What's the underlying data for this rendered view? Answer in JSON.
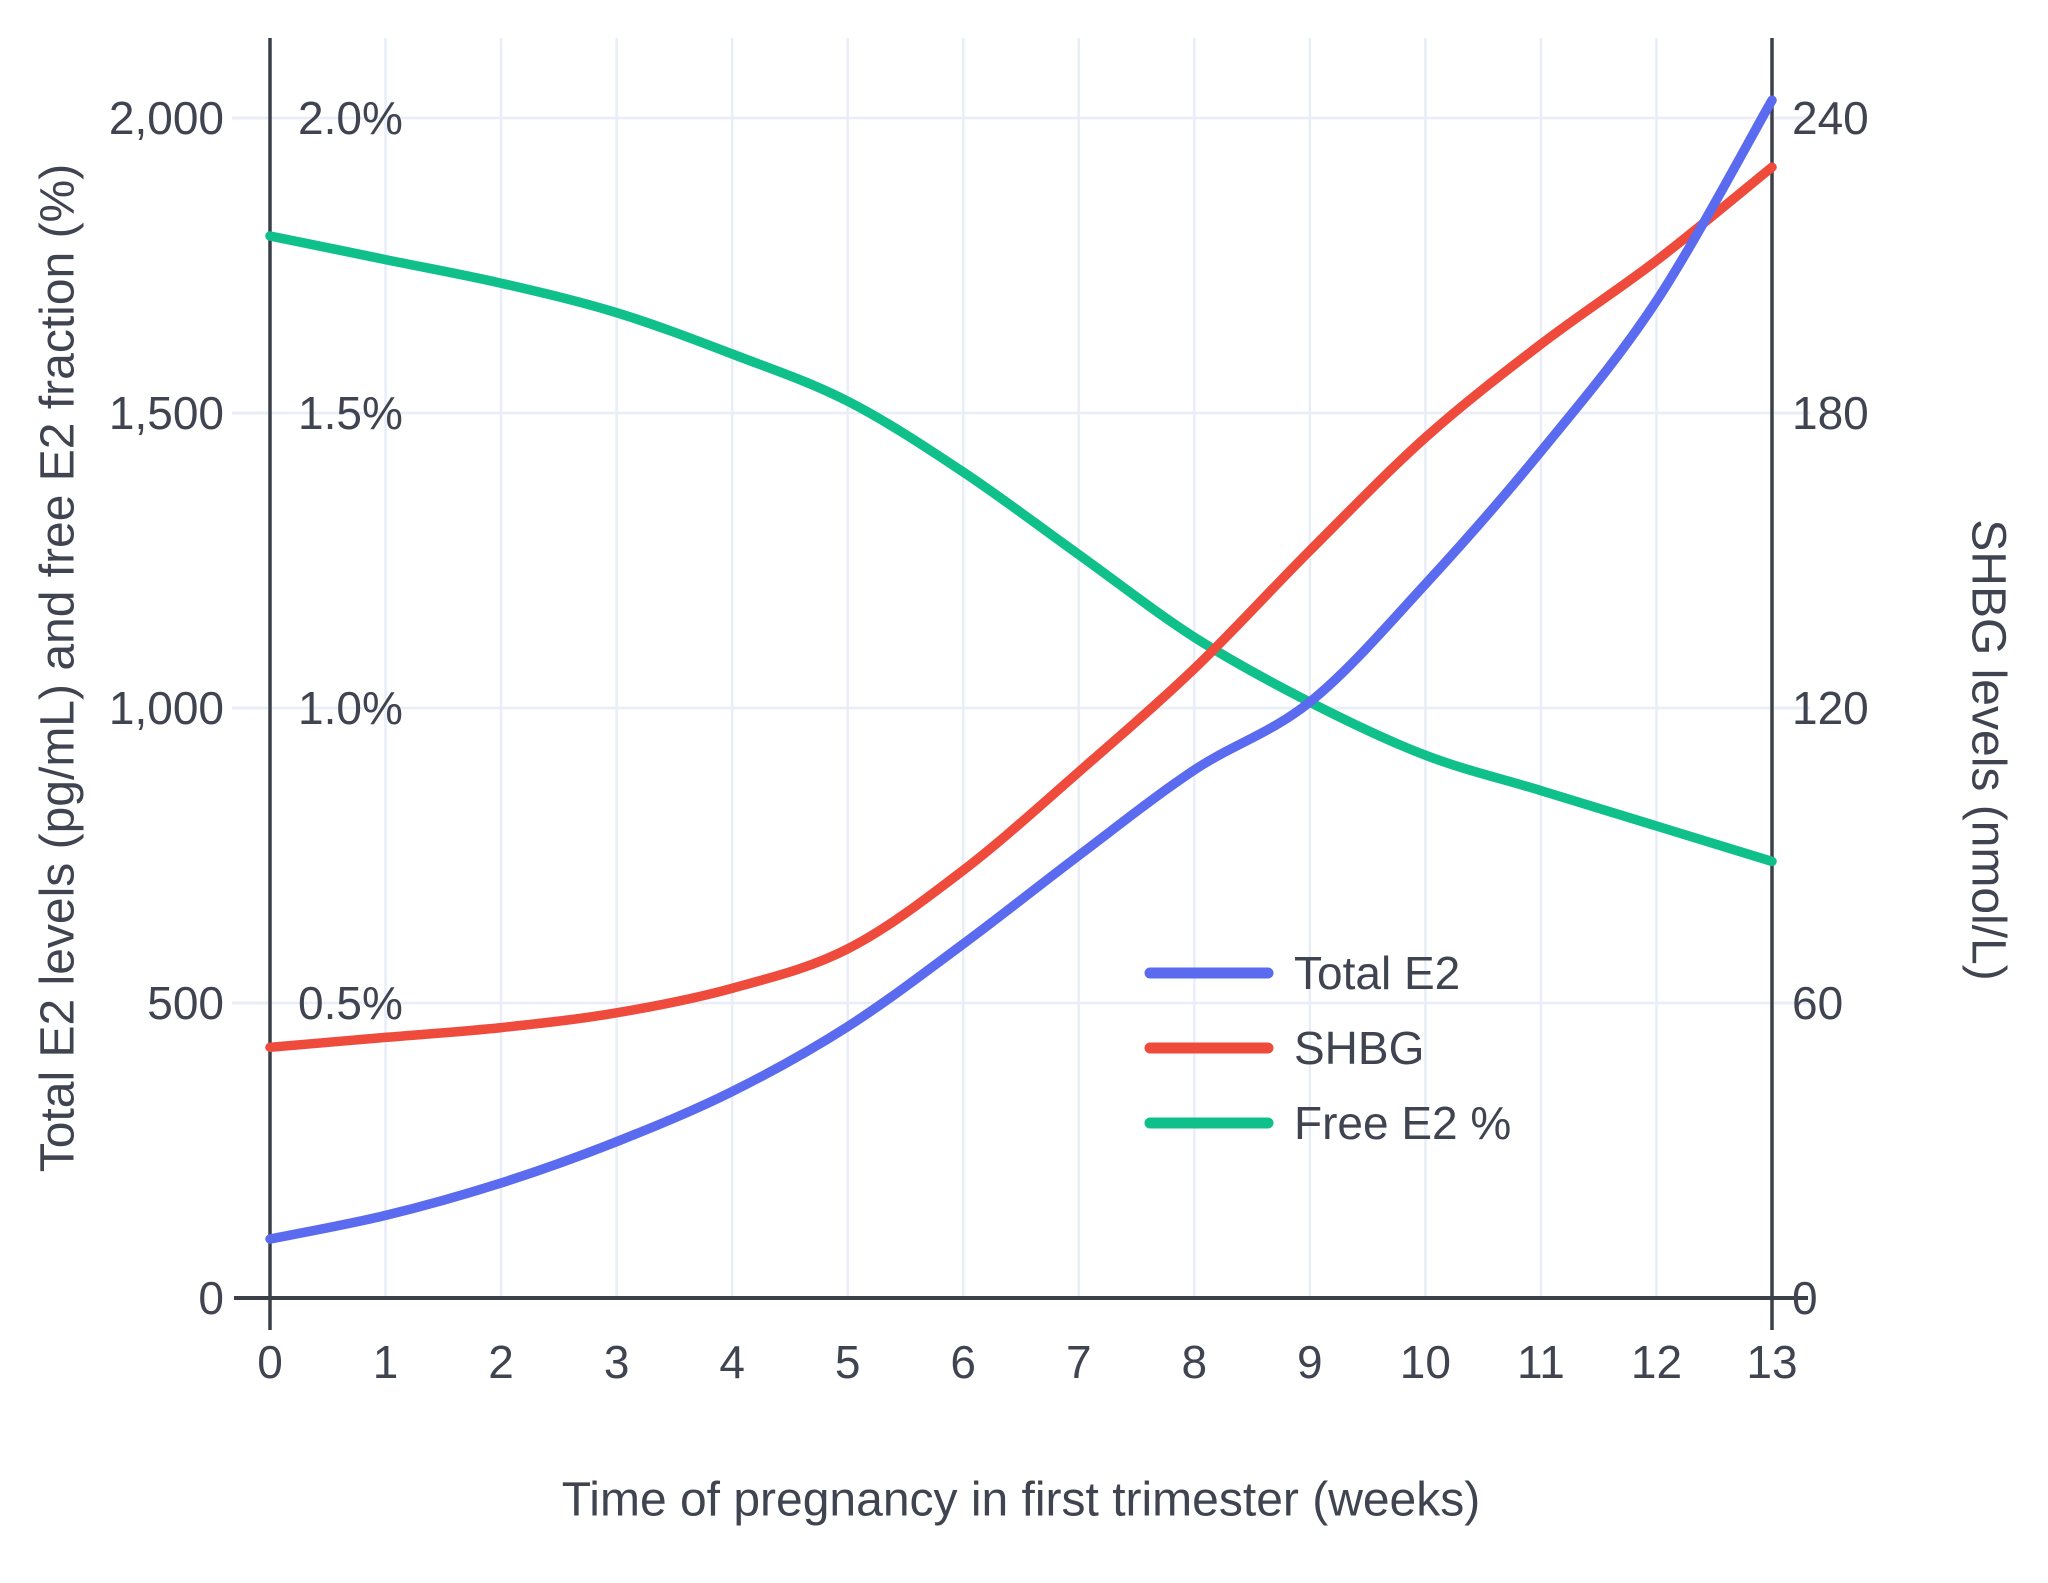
{
  "chart_data": {
    "type": "line",
    "title": "",
    "xlabel": "Time of pregnancy in first trimester (weeks)",
    "ylabel_left": "Total E2 levels (pg/mL) and free E2 fraction (%)",
    "ylabel_right": "SHBG levels (nmol/L)",
    "x": [
      0,
      1,
      2,
      3,
      4,
      5,
      6,
      7,
      8,
      9,
      10,
      11,
      12,
      13
    ],
    "x_tick_labels": [
      "0",
      "1",
      "2",
      "3",
      "4",
      "5",
      "6",
      "7",
      "8",
      "9",
      "10",
      "11",
      "12",
      "13"
    ],
    "y_left": {
      "range": [
        0,
        2000
      ],
      "tick_values": [
        0,
        500,
        1000,
        1500,
        2000
      ],
      "tick_labels": [
        "0",
        "500",
        "1,000",
        "1,500",
        "2,000"
      ]
    },
    "y_left_inner_percent": {
      "tick_values": [
        0.5,
        1.0,
        1.5,
        2.0
      ],
      "tick_labels": [
        "0.5%",
        "1.0%",
        "1.5%",
        "2.0%"
      ],
      "note": "free E2 fraction scale, 2.0% aligns with 2,000"
    },
    "y_right": {
      "range": [
        0,
        240
      ],
      "tick_values": [
        0,
        60,
        120,
        180,
        240
      ],
      "tick_labels": [
        "0",
        "60",
        "120",
        "180",
        "240"
      ]
    },
    "grid": true,
    "legend_position": "inside-lower-right",
    "series": [
      {
        "name": "Total E2",
        "axis": "left",
        "unit": "pg/mL",
        "color": "#5a6bef",
        "values": [
          100,
          140,
          195,
          265,
          350,
          460,
          600,
          750,
          895,
          1010,
          1210,
          1435,
          1690,
          2030
        ]
      },
      {
        "name": "SHBG",
        "axis": "right",
        "unit": "nmol/L",
        "color": "#ee4b3c",
        "values": [
          51,
          53,
          55,
          58,
          63,
          71,
          87,
          107,
          128,
          152,
          175,
          194,
          211,
          230
        ]
      },
      {
        "name": "Free E2 %",
        "axis": "left-percent",
        "unit": "%",
        "color": "#10c08a",
        "values": [
          1.8,
          1.76,
          1.72,
          1.67,
          1.6,
          1.52,
          1.4,
          1.26,
          1.12,
          1.01,
          0.92,
          0.86,
          0.8,
          0.74
        ]
      }
    ]
  },
  "style": {
    "background": "#ffffff",
    "grid_color": "#e8edf8",
    "axis_color": "#3b4048",
    "text_color": "#3f4450"
  }
}
